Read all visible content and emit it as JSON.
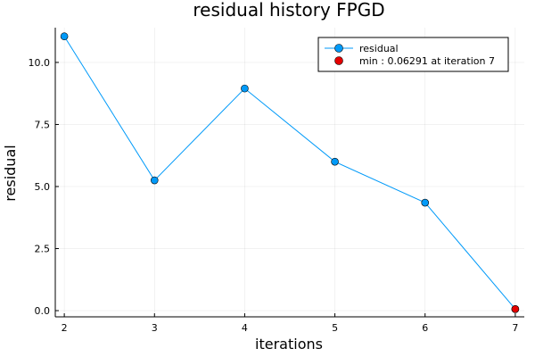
{
  "chart_data": {
    "type": "line",
    "title": "residual history FPGD",
    "xlabel": "iterations",
    "ylabel": "residual",
    "xlim": [
      1.9,
      7.1
    ],
    "ylim": [
      -0.25,
      11.4
    ],
    "xticks": [
      2,
      3,
      4,
      5,
      6,
      7
    ],
    "yticks": [
      0,
      2.5,
      5,
      7.5,
      10
    ],
    "ytick_labels": [
      "0.0",
      "2.5",
      "5.0",
      "7.5",
      "10.0"
    ],
    "grid": true,
    "legend_position": "top-right",
    "series": [
      {
        "name": "residual",
        "color": "#009af9",
        "x": [
          2,
          3,
          4,
          5,
          6,
          7
        ],
        "values": [
          11.05,
          5.25,
          8.95,
          6.0,
          4.35,
          0.06291
        ]
      }
    ],
    "highlight": {
      "label": "min : 0.06291 at iteration 7",
      "color": "#e40000",
      "x": 7,
      "y": 0.06291
    }
  }
}
